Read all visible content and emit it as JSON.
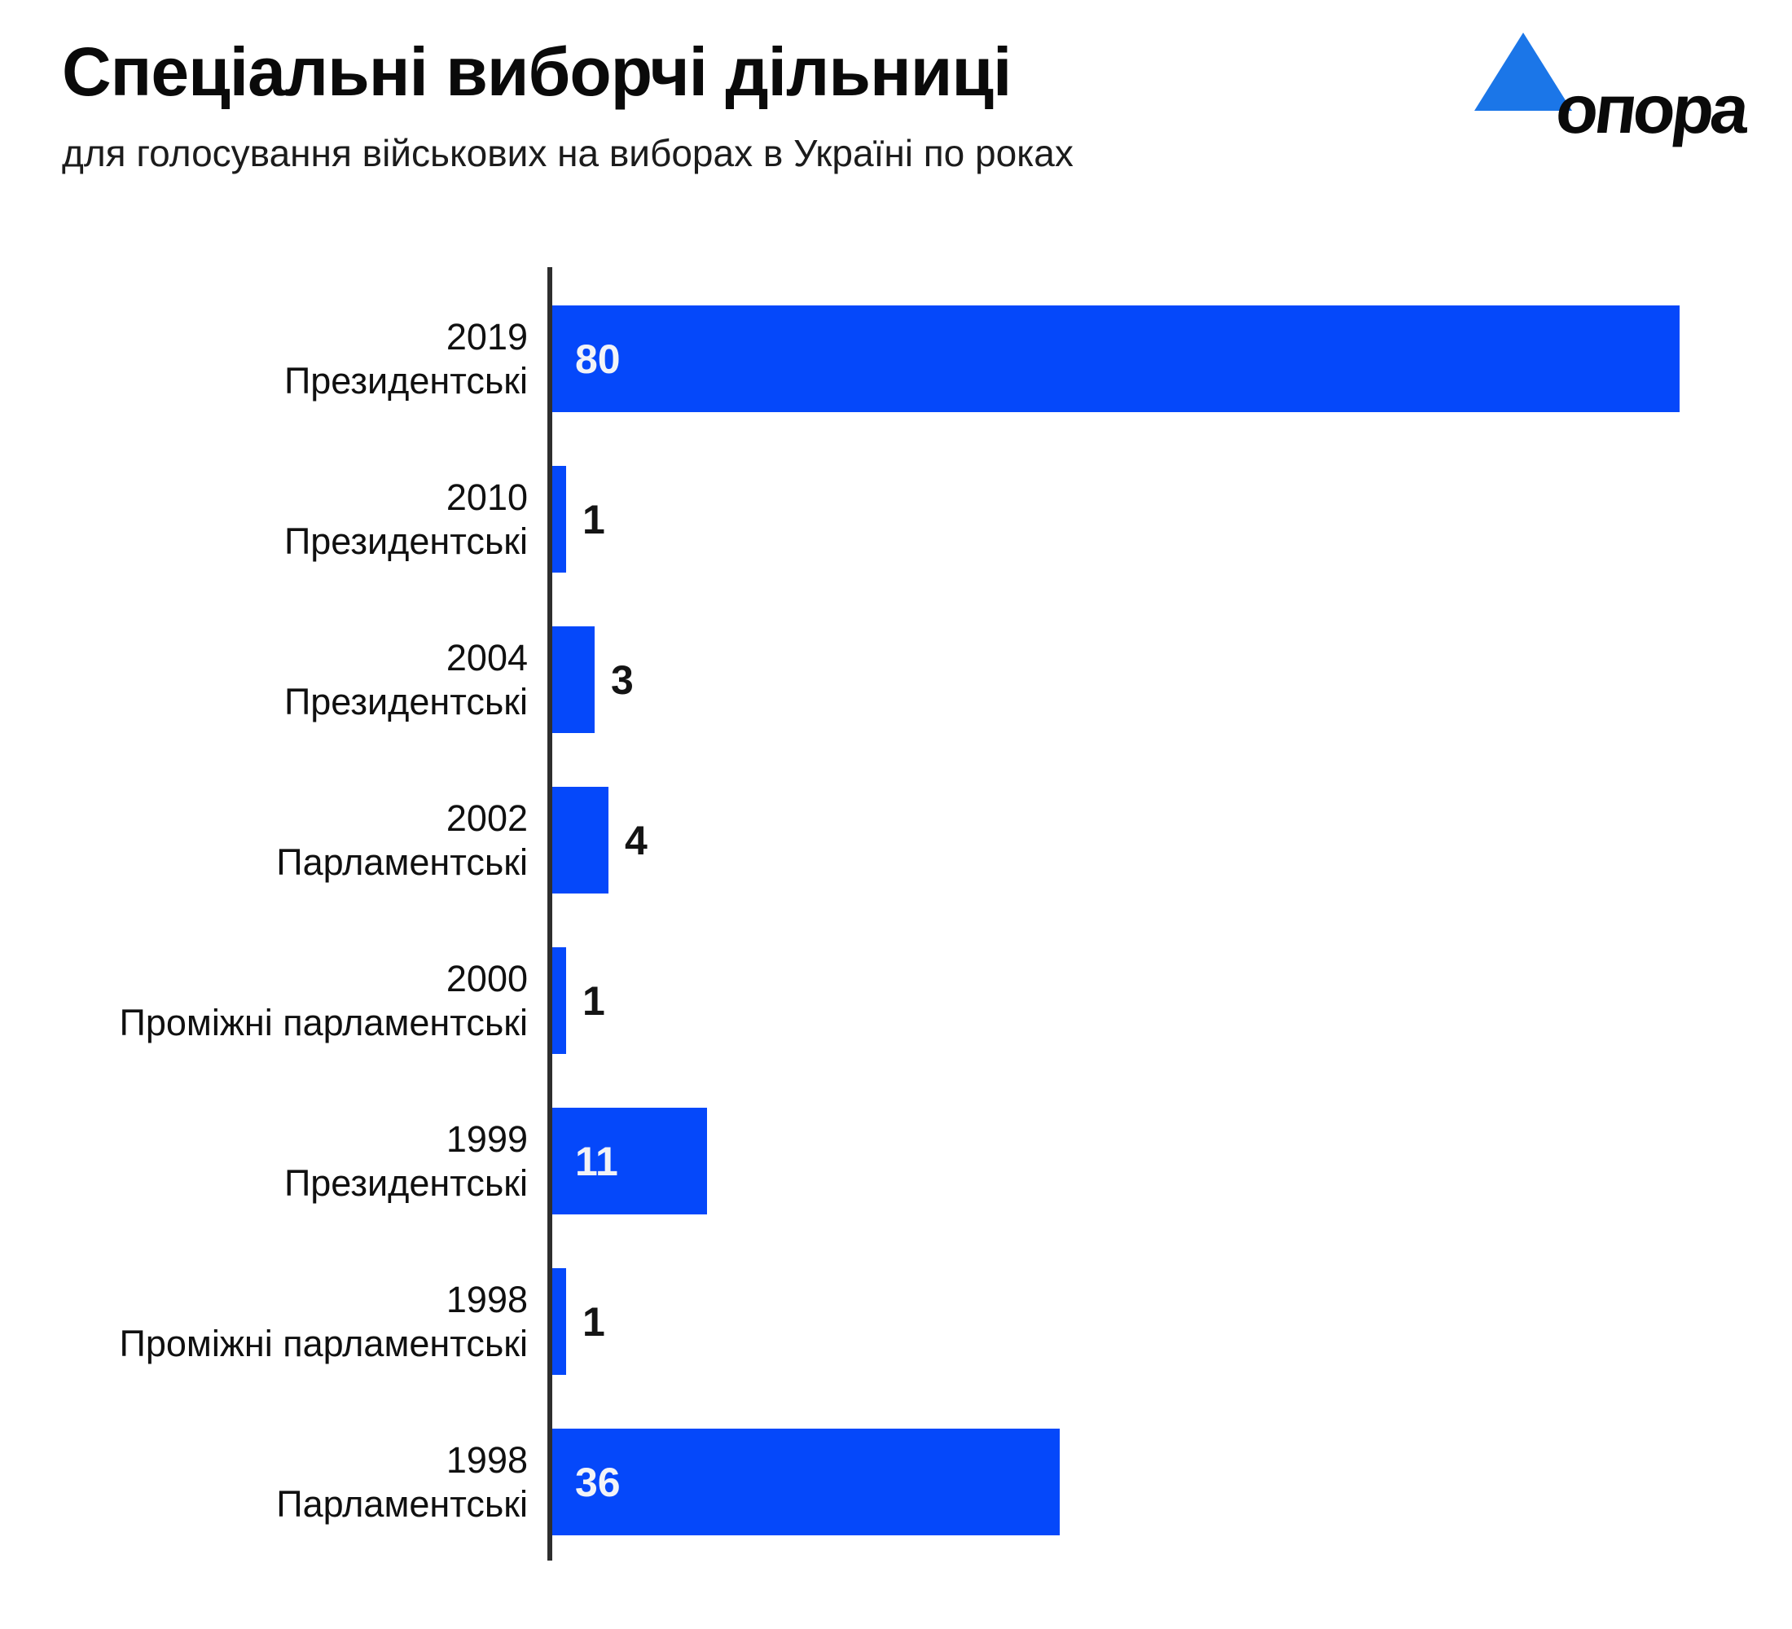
{
  "header": {
    "title": "Спеціальні виборчі дільниці",
    "subtitle": "для голосування військових на виборах в Україні по роках"
  },
  "logo": {
    "text": "опора",
    "triangle_color": "#1b76e8",
    "text_color": "#0a0a0a"
  },
  "colors": {
    "bar": "#0548fa",
    "axis": "#2e2e2e",
    "value_inside": "#f2f3f7",
    "value_outside": "#141414",
    "background": "#ffffff",
    "text": "#101010"
  },
  "chart_data": {
    "type": "bar",
    "orientation": "horizontal",
    "title": "Спеціальні виборчі дільниці",
    "subtitle": "для голосування військових на виборах в Україні по роках",
    "categories": [
      "2019 Президентські",
      "2010 Президентські",
      "2004 Президентські",
      "2002 Парламентські",
      "2000 Проміжні парламентські",
      "1999 Президентські",
      "1998 Проміжні парламентські",
      "1998 Парламентські"
    ],
    "values": [
      80,
      1,
      3,
      4,
      1,
      11,
      1,
      36
    ],
    "rows": [
      {
        "year": "2019",
        "kind": "Президентські",
        "value": 80
      },
      {
        "year": "2010",
        "kind": "Президентські",
        "value": 1
      },
      {
        "year": "2004",
        "kind": "Президентські",
        "value": 3
      },
      {
        "year": "2002",
        "kind": "Парламентські",
        "value": 4
      },
      {
        "year": "2000",
        "kind": "Проміжні парламентські",
        "value": 1
      },
      {
        "year": "1999",
        "kind": "Президентські",
        "value": 11
      },
      {
        "year": "1998",
        "kind": "Проміжні парламентські",
        "value": 1
      },
      {
        "year": "1998",
        "kind": "Парламентські",
        "value": 36
      }
    ],
    "xlim": [
      0,
      80
    ],
    "value_labels": true,
    "grid": false,
    "legend": false
  }
}
